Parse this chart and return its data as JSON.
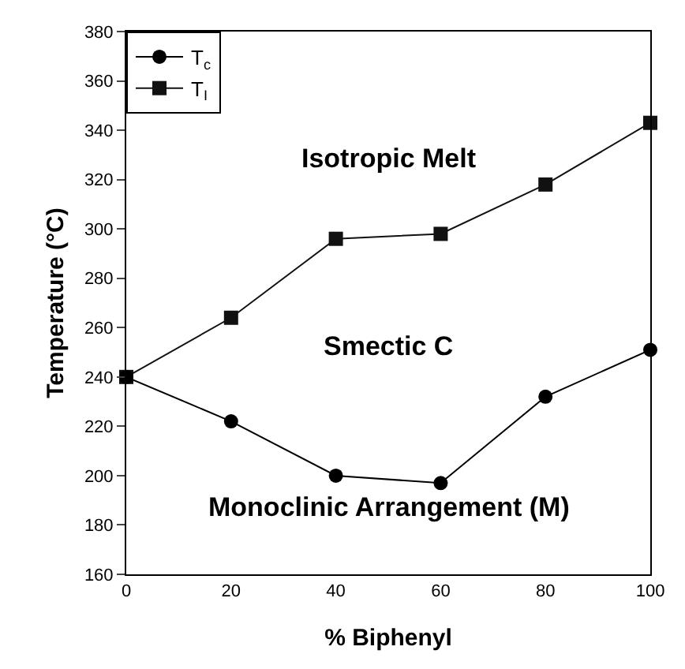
{
  "chart_data": {
    "type": "line",
    "xlabel": "% Biphenyl",
    "ylabel": "Temperature (°C)",
    "x": [
      0,
      20,
      40,
      60,
      80,
      100
    ],
    "series": [
      {
        "name": "T$_{c}$",
        "color": "#000000",
        "marker": "circle",
        "values": [
          240,
          222,
          200,
          197,
          232,
          251
        ]
      },
      {
        "name": "T$_{I}$",
        "color": "#111111",
        "marker": "square",
        "values": [
          240,
          264,
          296,
          298,
          318,
          343
        ]
      }
    ],
    "xlim": [
      0,
      100
    ],
    "xticks": [
      0,
      20,
      40,
      60,
      80,
      100
    ],
    "ylim": [
      160,
      380
    ],
    "yticks": [
      160,
      180,
      200,
      220,
      240,
      260,
      280,
      300,
      320,
      340,
      360,
      380
    ],
    "annotations": [
      "Isotropic Melt",
      "Smectic C",
      "Monoclinic Arrangement (M)"
    ],
    "legend": "top left",
    "grid": false,
    "line_style": "solid"
  }
}
